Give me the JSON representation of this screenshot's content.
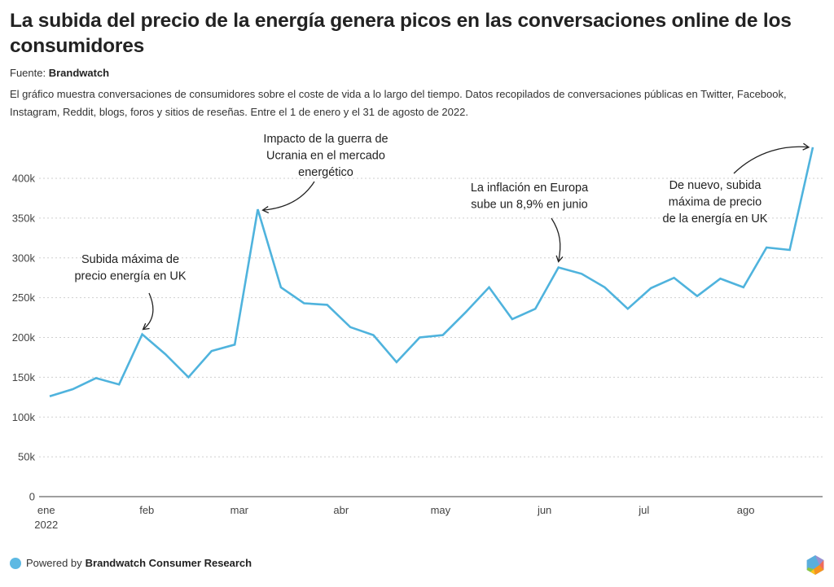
{
  "header": {
    "title": "La subida del precio de la energía genera picos en las conversaciones online de los consumidores",
    "source_label": "Fuente:",
    "source_name": "Brandwatch",
    "description": "El gráfico muestra conversaciones de consumidores sobre el coste de vida a lo largo del tiempo. Datos recopilados de conversaciones públicas en Twitter, Facebook, Instagram, Reddit, blogs, foros y sitios de reseñas. Entre el 1 de enero y el 31 de agosto de 2022."
  },
  "footer": {
    "powered_by": "Powered by",
    "brand": "Brandwatch Consumer Research",
    "dot_color": "#5db9e3"
  },
  "chart_data": {
    "type": "line",
    "title": "La subida del precio de la energía genera picos en las conversaciones online de los consumidores",
    "xlabel": "",
    "ylabel": "",
    "line_color": "#4fb3dd",
    "ylim": [
      0,
      400000
    ],
    "grid": true,
    "y_ticks": [
      {
        "value": 0,
        "label": "0"
      },
      {
        "value": 50000,
        "label": "50k"
      },
      {
        "value": 100000,
        "label": "100k"
      },
      {
        "value": 150000,
        "label": "150k"
      },
      {
        "value": 200000,
        "label": "200k"
      },
      {
        "value": 250000,
        "label": "250k"
      },
      {
        "value": 300000,
        "label": "300k"
      },
      {
        "value": 350000,
        "label": "350k"
      },
      {
        "value": 400000,
        "label": "400k"
      }
    ],
    "x_ticks": [
      {
        "week": -0.15,
        "label": "ene",
        "sublabel": "2022"
      },
      {
        "week": 4.2,
        "label": "feb"
      },
      {
        "week": 8.2,
        "label": "mar"
      },
      {
        "week": 12.6,
        "label": "abr"
      },
      {
        "week": 16.9,
        "label": "may"
      },
      {
        "week": 21.4,
        "label": "jun"
      },
      {
        "week": 25.7,
        "label": "jul"
      },
      {
        "week": 30.1,
        "label": "ago"
      }
    ],
    "series": [
      {
        "name": "Conversaciones",
        "frequency": "weekly",
        "values": [
          126000,
          135000,
          149000,
          141000,
          204000,
          179000,
          150000,
          183000,
          191000,
          361000,
          263000,
          243000,
          241000,
          213000,
          203000,
          169000,
          200000,
          203000,
          232000,
          263000,
          223000,
          236000,
          288000,
          280000,
          263000,
          236000,
          262000,
          275000,
          252000,
          274000,
          263000,
          313000,
          310000,
          439000
        ]
      }
    ],
    "annotations": [
      {
        "text": [
          "Subida máxima de",
          "precio energía en UK"
        ],
        "point_index": 4
      },
      {
        "text": [
          "Impacto de la guerra de",
          "Ucrania en el mercado",
          "energético"
        ],
        "point_index": 9
      },
      {
        "text": [
          "La inflación en Europa",
          "sube un 8,9% en junio"
        ],
        "point_index": 22
      },
      {
        "text": [
          "De nuevo, subida",
          "máxima de precio",
          "de la energía en UK"
        ],
        "point_index": 33
      }
    ]
  }
}
